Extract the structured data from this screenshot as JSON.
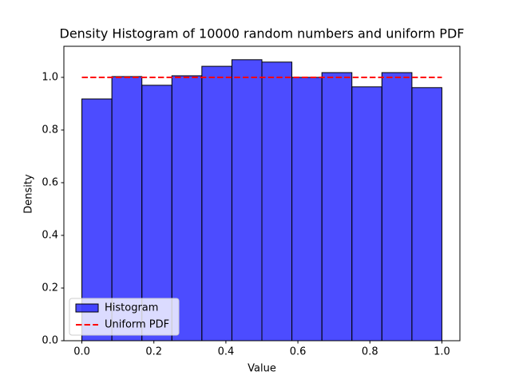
{
  "chart_data": {
    "type": "histogram",
    "title": "Density Histogram of 10000 random numbers and uniform PDF",
    "xlabel": "Value",
    "ylabel": "Density",
    "name": "Histogram",
    "color": "#0000ff",
    "opacity": 0.7,
    "edgecolor": "#000000",
    "bins": [
      0,
      0.0833,
      0.1667,
      0.25,
      0.3333,
      0.4167,
      0.5,
      0.5833,
      0.6667,
      0.75,
      0.8333,
      0.9167,
      1
    ],
    "values": [
      0.918,
      1.003,
      0.97,
      1.006,
      1.042,
      1.067,
      1.058,
      1.0,
      1.018,
      0.964,
      1.018,
      0.961
    ],
    "series": [
      {
        "name": "Uniform PDF",
        "type": "line",
        "color": "#ff0000",
        "linestyle": "dashed",
        "x": [
          0,
          1
        ],
        "values": [
          1,
          1
        ]
      }
    ],
    "xlim": [
      -0.05,
      1.05
    ],
    "ylim": [
      0,
      1.118
    ],
    "xticks": [
      {
        "value": 0,
        "label": "0.0"
      },
      0.2,
      0.4,
      0.6,
      0.8,
      {
        "value": 1,
        "label": "1.0"
      }
    ],
    "yticks": [
      {
        "value": 0,
        "label": "0.0"
      },
      0.2,
      0.4,
      0.6,
      0.8,
      {
        "value": 1,
        "label": "1.0"
      }
    ],
    "legend": "lower left"
  }
}
